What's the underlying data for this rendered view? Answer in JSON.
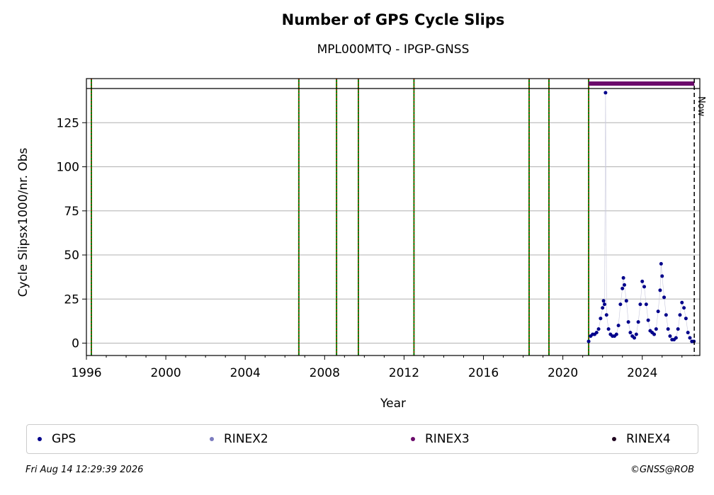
{
  "title": "Number of GPS Cycle Slips",
  "subtitle": "MPL000MTQ - IPGP-GNSS",
  "footer": {
    "timestamp": "Fri Aug 14 12:29:39 2026",
    "copyright": "©GNSS@ROB"
  },
  "legend": [
    {
      "label": "GPS",
      "color": "#00008b"
    },
    {
      "label": "RINEX2",
      "color": "#7b7bbf"
    },
    {
      "label": "RINEX3",
      "color": "#6b0a6b"
    },
    {
      "label": "RINEX4",
      "color": "#200520"
    }
  ],
  "chart_data": {
    "type": "scatter",
    "xlabel": "Year",
    "ylabel": "Cycle Slipsx1000/nr. Obs",
    "xlim": [
      1996,
      2026.9
    ],
    "ylim": [
      -7,
      150
    ],
    "x_ticks": [
      1996,
      2000,
      2004,
      2008,
      2012,
      2016,
      2020,
      2024
    ],
    "y_ticks": [
      0,
      25,
      50,
      75,
      100,
      125
    ],
    "grid": "horizontal",
    "legend_position": "bottom",
    "now_label": "Now",
    "now_year": 2026.62,
    "event_lines": [
      1996.25,
      2006.7,
      2008.6,
      2009.7,
      2012.5,
      2018.3,
      2019.3,
      2021.3
    ],
    "rinex3_span": [
      2021.3,
      2026.62
    ],
    "series": [
      {
        "name": "GPS",
        "color": "#00008b",
        "points": [
          [
            2021.3,
            1
          ],
          [
            2021.4,
            4
          ],
          [
            2021.5,
            5
          ],
          [
            2021.6,
            5
          ],
          [
            2021.7,
            6
          ],
          [
            2021.8,
            8
          ],
          [
            2021.9,
            14
          ],
          [
            2022.0,
            20
          ],
          [
            2022.05,
            24
          ],
          [
            2022.1,
            22
          ],
          [
            2022.15,
            142
          ],
          [
            2022.2,
            16
          ],
          [
            2022.3,
            8
          ],
          [
            2022.4,
            5
          ],
          [
            2022.5,
            4
          ],
          [
            2022.6,
            4
          ],
          [
            2022.7,
            5
          ],
          [
            2022.8,
            10
          ],
          [
            2022.9,
            22
          ],
          [
            2023.0,
            31
          ],
          [
            2023.05,
            37
          ],
          [
            2023.1,
            33
          ],
          [
            2023.2,
            24
          ],
          [
            2023.3,
            12
          ],
          [
            2023.4,
            6
          ],
          [
            2023.5,
            4
          ],
          [
            2023.6,
            3
          ],
          [
            2023.7,
            5
          ],
          [
            2023.8,
            12
          ],
          [
            2023.9,
            22
          ],
          [
            2024.0,
            35
          ],
          [
            2024.1,
            32
          ],
          [
            2024.2,
            22
          ],
          [
            2024.3,
            13
          ],
          [
            2024.4,
            7
          ],
          [
            2024.5,
            6
          ],
          [
            2024.6,
            5
          ],
          [
            2024.7,
            8
          ],
          [
            2024.8,
            18
          ],
          [
            2024.9,
            30
          ],
          [
            2024.95,
            45
          ],
          [
            2025.0,
            38
          ],
          [
            2025.1,
            26
          ],
          [
            2025.2,
            16
          ],
          [
            2025.3,
            8
          ],
          [
            2025.4,
            4
          ],
          [
            2025.5,
            2
          ],
          [
            2025.6,
            2
          ],
          [
            2025.7,
            3
          ],
          [
            2025.8,
            8
          ],
          [
            2025.9,
            16
          ],
          [
            2026.0,
            23
          ],
          [
            2026.1,
            20
          ],
          [
            2026.2,
            14
          ],
          [
            2026.3,
            6
          ],
          [
            2026.4,
            3
          ],
          [
            2026.5,
            1
          ],
          [
            2026.6,
            1
          ]
        ]
      }
    ]
  }
}
